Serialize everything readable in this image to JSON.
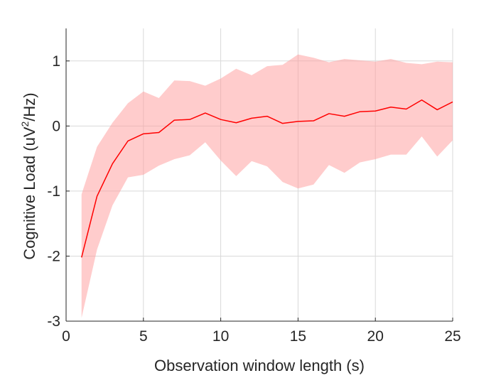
{
  "chart_data": {
    "type": "area",
    "title": "",
    "xlabel": "Observation window length (s)",
    "ylabel": {
      "prefix": "Cognitive Load (uV",
      "superscript": "2",
      "suffix": "/Hz)"
    },
    "xlim": [
      0,
      25
    ],
    "ylim": [
      -3,
      1.5
    ],
    "xticks": [
      0,
      5,
      10,
      15,
      20,
      25
    ],
    "yticks": [
      -3,
      -2,
      -1,
      0,
      1
    ],
    "grid": true,
    "legend": "none",
    "x": [
      1,
      2,
      3,
      4,
      5,
      6,
      7,
      8,
      9,
      10,
      11,
      12,
      13,
      14,
      15,
      16,
      17,
      18,
      19,
      20,
      21,
      22,
      23,
      24,
      25
    ],
    "series": [
      {
        "mean": [
          -2.02,
          -1.08,
          -0.58,
          -0.23,
          -0.12,
          -0.1,
          0.09,
          0.1,
          0.2,
          0.1,
          0.05,
          0.12,
          0.15,
          0.04,
          0.07,
          0.08,
          0.19,
          0.15,
          0.22,
          0.23,
          0.29,
          0.26,
          0.4,
          0.25,
          0.37
        ],
        "upper": [
          -1.05,
          -0.32,
          0.05,
          0.35,
          0.53,
          0.43,
          0.7,
          0.69,
          0.62,
          0.73,
          0.88,
          0.78,
          0.92,
          0.94,
          1.1,
          1.05,
          0.98,
          1.03,
          1.01,
          0.99,
          1.03,
          0.97,
          0.95,
          0.99,
          0.98
        ],
        "lower": [
          -2.95,
          -1.9,
          -1.22,
          -0.79,
          -0.75,
          -0.61,
          -0.51,
          -0.45,
          -0.25,
          -0.53,
          -0.77,
          -0.54,
          -0.62,
          -0.86,
          -0.96,
          -0.9,
          -0.6,
          -0.72,
          -0.56,
          -0.51,
          -0.44,
          -0.44,
          -0.16,
          -0.47,
          -0.22
        ]
      }
    ],
    "colors": {
      "line": "#ff0000",
      "band": "#ff9999",
      "grid": "#d9d9d9",
      "axis": "#262626"
    }
  }
}
